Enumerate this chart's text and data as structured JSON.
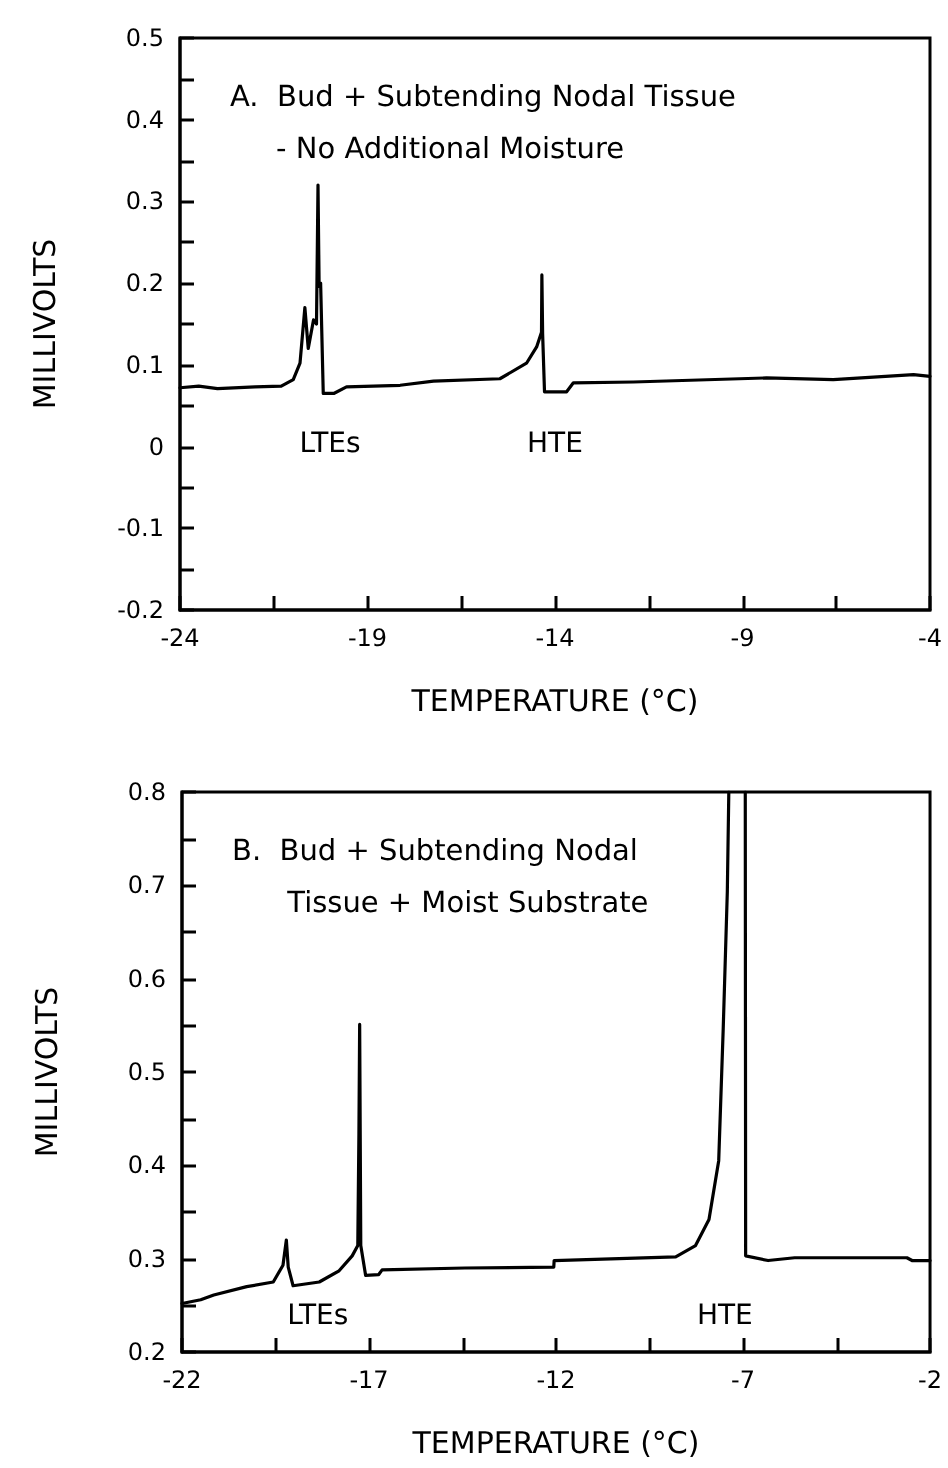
{
  "chart_data": [
    {
      "type": "line",
      "title": "A.  Bud + Subtending Nodal Tissue\n     - No Additional Moisture",
      "xlabel": "TEMPERATURE (°C)",
      "ylabel": "MILLIVOLTS",
      "x": [
        -24,
        -23.5,
        -23,
        -22,
        -21.3,
        -20.98,
        -20.8,
        -20.67,
        -20.58,
        -20.44,
        -20.36,
        -20.32,
        -20.29,
        -20.25,
        -20.18,
        -19.9,
        -19.56,
        -18.13,
        -17.24,
        -15.47,
        -14.76,
        -14.49,
        -14.36,
        -14.35,
        -14.33,
        -14.28,
        -13.69,
        -13.51,
        -11.91,
        -8.36,
        -6.58,
        -4.44,
        -4
      ],
      "series": [
        {
          "color": "#000000",
          "values": [
            0.072,
            0.074,
            0.071,
            0.073,
            0.074,
            0.082,
            0.102,
            0.17,
            0.12,
            0.155,
            0.15,
            0.32,
            0.196,
            0.2,
            0.065,
            0.065,
            0.073,
            0.075,
            0.08,
            0.083,
            0.102,
            0.122,
            0.14,
            0.21,
            0.138,
            0.067,
            0.067,
            0.078,
            0.079,
            0.084,
            0.082,
            0.088,
            0.086
          ]
        }
      ],
      "xlim": [
        -24,
        -4
      ],
      "xticks": [
        -24,
        {
          "value": -21.5,
          "label": null
        },
        -19,
        {
          "value": -16.5,
          "label": null
        },
        -14,
        {
          "value": -11.5,
          "label": null
        },
        -9,
        {
          "value": -6.5,
          "label": null
        },
        -4
      ],
      "ylim": [
        -0.2,
        0.5
      ],
      "yticks": [
        -0.2,
        {
          "value": -0.15,
          "label": null
        },
        -0.1,
        {
          "value": -0.05,
          "label": null
        },
        0,
        {
          "value": 0.05,
          "label": null
        },
        0.1,
        {
          "value": 0.15,
          "label": null
        },
        0.2,
        {
          "value": 0.25,
          "label": null
        },
        0.3,
        {
          "value": 0.35,
          "label": null
        },
        0.4,
        {
          "value": 0.45,
          "label": null
        },
        0.5
      ],
      "annotations": [
        "LTEs",
        "HTE"
      ],
      "grid": false,
      "marker": "none",
      "line_style": "solid"
    },
    {
      "type": "line",
      "title": "B.  Bud + Subtending Nodal\n      Tissue + Moist Substrate",
      "xlabel": "TEMPERATURE (°C)",
      "ylabel": "MILLIVOLTS",
      "x": [
        -22,
        -21.5,
        -21.15,
        -20.27,
        -19.56,
        -19.3,
        -19.21,
        -19.16,
        -19.03,
        -18.33,
        -17.8,
        -17.45,
        -17.3,
        -17.27,
        -17.25,
        -17.22,
        -17.09,
        -16.74,
        -16.65,
        -14.44,
        -12.06,
        -12.05,
        -8.8,
        -8.27,
        -7.91,
        -7.65,
        -7.53,
        -7.42,
        -7.38,
        -7.2,
        -6.94,
        -6.93,
        -6.33,
        -5.62,
        -2.62,
        -2.48,
        -2
      ],
      "series": [
        {
          "color": "#000000",
          "values": [
            0.252,
            0.256,
            0.261,
            0.27,
            0.275,
            0.293,
            0.32,
            0.291,
            0.271,
            0.275,
            0.287,
            0.303,
            0.314,
            0.433,
            0.551,
            0.314,
            0.282,
            0.283,
            0.288,
            0.29,
            0.291,
            0.298,
            0.302,
            0.314,
            0.342,
            0.405,
            0.546,
            0.693,
            0.8,
            null,
            0.8,
            0.303,
            0.298,
            0.301,
            0.301,
            0.298,
            0.298
          ]
        }
      ],
      "xlim": [
        -22,
        -2
      ],
      "xticks": [
        -22,
        {
          "value": -19.5,
          "label": null
        },
        -17,
        {
          "value": -14.5,
          "label": null
        },
        -12,
        {
          "value": -9.5,
          "label": null
        },
        -7,
        {
          "value": -4.5,
          "label": null
        },
        -2
      ],
      "ylim": [
        0.2,
        0.8
      ],
      "yticks": [
        0.2,
        {
          "value": 0.25,
          "label": null
        },
        0.3,
        {
          "value": 0.35,
          "label": null
        },
        0.4,
        {
          "value": 0.45,
          "label": null
        },
        0.5,
        {
          "value": 0.55,
          "label": null
        },
        0.6,
        {
          "value": 0.65,
          "label": null
        },
        0.7,
        {
          "value": 0.75,
          "label": null
        },
        0.8
      ],
      "annotations": [
        "LTEs",
        "HTE"
      ],
      "grid": false,
      "marker": "none",
      "line_style": "solid"
    }
  ]
}
